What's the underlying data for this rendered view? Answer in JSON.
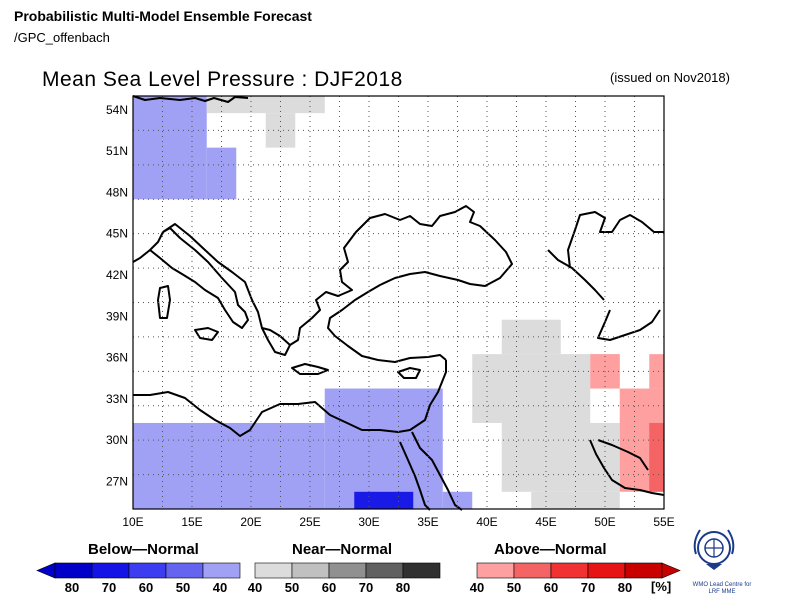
{
  "header": {
    "product": "Probabilistic Multi-Model Ensemble Forecast",
    "source": "/GPC_offenbach",
    "title": "Mean Sea Level Pressure : DJF2018",
    "issued": "(issued on Nov2018)"
  },
  "map": {
    "lat_labels": [
      "54N",
      "51N",
      "48N",
      "45N",
      "42N",
      "39N",
      "36N",
      "33N",
      "30N",
      "27N"
    ],
    "lon_labels": [
      "10E",
      "15E",
      "20E",
      "25E",
      "30E",
      "35E",
      "40E",
      "45E",
      "50E",
      "55E"
    ],
    "extent": {
      "lon_min": 10,
      "lon_max": 55,
      "lat_min": 25,
      "lat_max": 55
    },
    "grid_step_deg": 2.5,
    "colors": {
      "below_40": "#a0a0f5",
      "below_60": "#1a1ae6",
      "near": "#dcdcdc",
      "above_40": "#ffa0a0",
      "above_50": "#f56464"
    },
    "categories": [
      {
        "cat": "below_40",
        "lon": [
          10,
          16.25
        ],
        "lat": [
          47.5,
          55
        ]
      },
      {
        "cat": "below_40",
        "lon": [
          16.25,
          18.75
        ],
        "lat": [
          47.5,
          51.25
        ]
      },
      {
        "cat": "below_40",
        "lon": [
          10,
          26.25
        ],
        "lat": [
          25,
          31.25
        ]
      },
      {
        "cat": "below_40",
        "lon": [
          26.25,
          36.25
        ],
        "lat": [
          25,
          33.75
        ]
      },
      {
        "cat": "below_40",
        "lon": [
          36.25,
          38.75
        ],
        "lat": [
          25,
          26.25
        ]
      },
      {
        "cat": "below_60",
        "lon": [
          28.75,
          33.75
        ],
        "lat": [
          25,
          26.25
        ]
      },
      {
        "cat": "near",
        "lon": [
          16.25,
          26.25
        ],
        "lat": [
          53.75,
          55
        ]
      },
      {
        "cat": "near",
        "lon": [
          21.25,
          23.75
        ],
        "lat": [
          51.25,
          53.75
        ]
      },
      {
        "cat": "near",
        "lon": [
          41.25,
          46.25
        ],
        "lat": [
          36.25,
          38.75
        ]
      },
      {
        "cat": "near",
        "lon": [
          38.75,
          48.75
        ],
        "lat": [
          31.25,
          36.25
        ]
      },
      {
        "cat": "near",
        "lon": [
          41.25,
          51.25
        ],
        "lat": [
          26.25,
          31.25
        ]
      },
      {
        "cat": "near",
        "lon": [
          48.75,
          51.25
        ],
        "lat": [
          33.75,
          36.25
        ]
      },
      {
        "cat": "near",
        "lon": [
          43.75,
          51.25
        ],
        "lat": [
          25,
          26.25
        ]
      },
      {
        "cat": "above_40",
        "lon": [
          48.75,
          51.25
        ],
        "lat": [
          33.75,
          36.25
        ]
      },
      {
        "cat": "above_40",
        "lon": [
          53.75,
          55
        ],
        "lat": [
          33.75,
          36.25
        ]
      },
      {
        "cat": "above_40",
        "lon": [
          51.25,
          55
        ],
        "lat": [
          26.25,
          33.75
        ]
      },
      {
        "cat": "above_50",
        "lon": [
          53.75,
          55
        ],
        "lat": [
          26.25,
          31.25
        ]
      }
    ]
  },
  "legend": {
    "below_title": "Below—Normal",
    "near_title": "Near—Normal",
    "above_title": "Above—Normal",
    "below_labels": [
      "80",
      "70",
      "60",
      "50",
      "40"
    ],
    "near_labels": [
      "40",
      "50",
      "60",
      "70",
      "80"
    ],
    "above_labels": [
      "40",
      "50",
      "60",
      "70",
      "80"
    ],
    "unit": "[%]",
    "below_colors": [
      "#0000c8",
      "#1414e6",
      "#3c3cf0",
      "#6464f0",
      "#a0a0f5"
    ],
    "near_colors": [
      "#dcdcdc",
      "#c0c0c0",
      "#909090",
      "#606060",
      "#303030"
    ],
    "above_colors": [
      "#ffa0a0",
      "#f56464",
      "#f03232",
      "#e61414",
      "#c80000"
    ]
  },
  "logo": {
    "text": "WMO Lead Centre for LRF MME"
  }
}
